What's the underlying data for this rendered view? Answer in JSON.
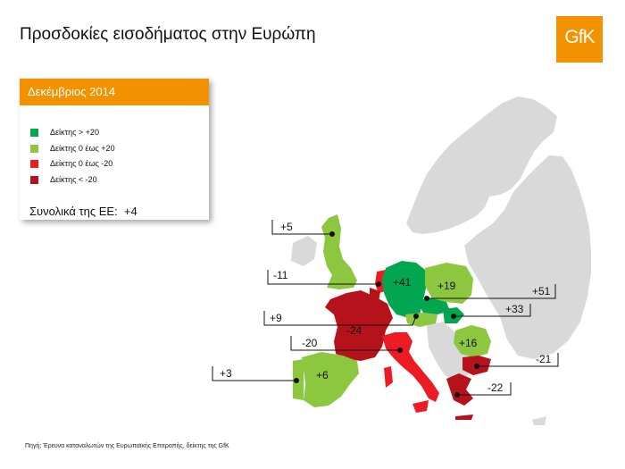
{
  "title": "Προσδοκίες εισοδήματος στην Ευρώπη",
  "logo": "GfK",
  "legend": {
    "period": "Δεκέμβριος 2014",
    "items": [
      {
        "label": "Δείκτης > +20",
        "color": "#00a650"
      },
      {
        "label": "Δείκτης 0 έως +20",
        "color": "#8dc63f"
      },
      {
        "label": "Δείκτης 0 έως -20",
        "color": "#ed1c24"
      },
      {
        "label": "Δείκτης < -20",
        "color": "#b5121b"
      }
    ],
    "eu_total_label": "Συνολικά της ΕΕ:",
    "eu_total_value": "+4"
  },
  "map_values": {
    "uk": "+5",
    "netherlands": "-11",
    "belgium": "+9",
    "france": "-24",
    "germany": "+41",
    "poland": "+19",
    "austria": "+33",
    "czech": "+51",
    "italy": "-20",
    "spain": "+6",
    "portugal": "+3",
    "romania": "+16",
    "bulgaria": "-21",
    "greece": "-22"
  },
  "colors": {
    "accent": "#f39200",
    "base_land": "#d9d9d9"
  },
  "source": "Πηγή: Έρευνα καταναλωτών της  Ευρωπαϊκής Επιτροπής, δείκτης της GfK"
}
